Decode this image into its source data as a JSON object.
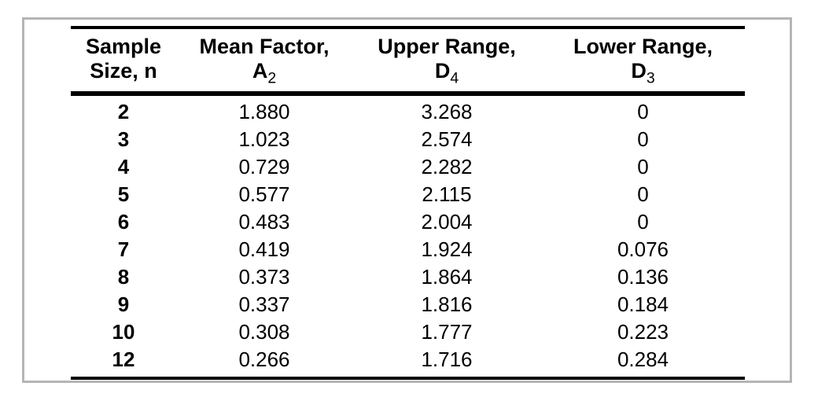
{
  "colors": {
    "background": "#ffffff",
    "frame_border": "#b5b5b5",
    "rule": "#000000",
    "text": "#000000"
  },
  "table": {
    "columns": [
      {
        "line1": "Sample",
        "line2": "Size, n",
        "sub": ""
      },
      {
        "line1": "Mean Factor,",
        "line2": "A",
        "sub": "2"
      },
      {
        "line1": "Upper Range,",
        "line2": "D",
        "sub": "4"
      },
      {
        "line1": "Lower Range,",
        "line2": "D",
        "sub": "3"
      }
    ],
    "rows": [
      [
        "2",
        "1.880",
        "3.268",
        "0"
      ],
      [
        "3",
        "1.023",
        "2.574",
        "0"
      ],
      [
        "4",
        "0.729",
        "2.282",
        "0"
      ],
      [
        "5",
        "0.577",
        "2.115",
        "0"
      ],
      [
        "6",
        "0.483",
        "2.004",
        "0"
      ],
      [
        "7",
        "0.419",
        "1.924",
        "0.076"
      ],
      [
        "8",
        "0.373",
        "1.864",
        "0.136"
      ],
      [
        "9",
        "0.337",
        "1.816",
        "0.184"
      ],
      [
        "10",
        "0.308",
        "1.777",
        "0.223"
      ],
      [
        "12",
        "0.266",
        "1.716",
        "0.284"
      ]
    ]
  }
}
